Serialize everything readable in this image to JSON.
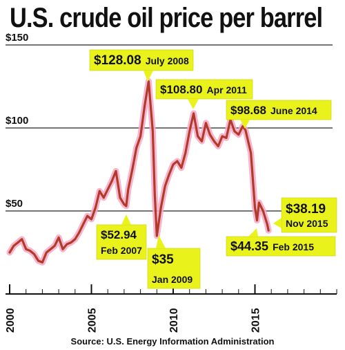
{
  "chart_data": {
    "type": "line",
    "title": "U.S. crude oil price per barrel",
    "source": "Source: U.S. Energy Information Administration",
    "xlabel": "",
    "ylabel": "",
    "xlim": [
      2000,
      2020
    ],
    "ylim": [
      0,
      150
    ],
    "x_ticks": [
      2000,
      2005,
      2010,
      2015
    ],
    "x_tick_labels": [
      "2000",
      "2005",
      "2010",
      "2015"
    ],
    "y_ticks": [
      50,
      100,
      150
    ],
    "y_tick_labels": [
      "$50",
      "$100",
      "$150"
    ],
    "grid": "horizontal",
    "line_color": "#b33a2a",
    "glow_color": "#f3a9c6",
    "callout_color": "#eaf21c",
    "series": [
      {
        "x": [
          2000.0,
          2000.25,
          2000.5,
          2000.75,
          2001.0,
          2001.25,
          2001.5,
          2001.75,
          2002.0,
          2002.25,
          2002.5,
          2002.75,
          2003.0,
          2003.25,
          2003.5,
          2003.75,
          2004.0,
          2004.25,
          2004.5,
          2004.75,
          2005.0,
          2005.25,
          2005.5,
          2005.75,
          2006.0,
          2006.25,
          2006.5,
          2006.75,
          2007.0,
          2007.125,
          2007.25,
          2007.5,
          2007.75,
          2008.0,
          2008.25,
          2008.5,
          2008.75,
          2008.875,
          2009.0,
          2009.25,
          2009.5,
          2009.75,
          2010.0,
          2010.25,
          2010.5,
          2010.75,
          2011.0,
          2011.25,
          2011.5,
          2011.75,
          2012.0,
          2012.25,
          2012.5,
          2012.75,
          2013.0,
          2013.25,
          2013.5,
          2013.75,
          2014.0,
          2014.25,
          2014.42,
          2014.75,
          2015.0,
          2015.125,
          2015.25,
          2015.5,
          2015.75,
          2015.83
        ],
        "values": [
          25,
          29,
          31,
          33,
          27,
          26,
          24,
          20,
          19,
          25,
          27,
          29,
          34,
          27,
          30,
          31,
          33,
          37,
          42,
          47,
          45,
          52,
          62,
          58,
          63,
          68,
          74,
          58,
          54,
          52.94,
          63,
          75,
          88,
          95,
          113,
          128.08,
          98,
          60,
          35,
          52,
          65,
          72,
          78,
          80,
          76,
          85,
          98,
          108.8,
          95,
          92,
          103,
          96,
          92,
          89,
          95,
          94,
          105,
          98,
          96,
          101,
          98.68,
          85,
          52,
          44.35,
          55,
          50,
          42,
          38.19
        ]
      }
    ],
    "annotations": [
      {
        "price": "$128.08",
        "date": "July 2008"
      },
      {
        "price": "$108.80",
        "date": "Apr 2011"
      },
      {
        "price": "$98.68",
        "date": "June 2014"
      },
      {
        "price": "$52.94",
        "date": "Feb 2007"
      },
      {
        "price": "$35",
        "date": "Jan 2009"
      },
      {
        "price": "$38.19",
        "date": "Nov 2015"
      },
      {
        "price": "$44.35",
        "date": "Feb 2015"
      }
    ]
  }
}
